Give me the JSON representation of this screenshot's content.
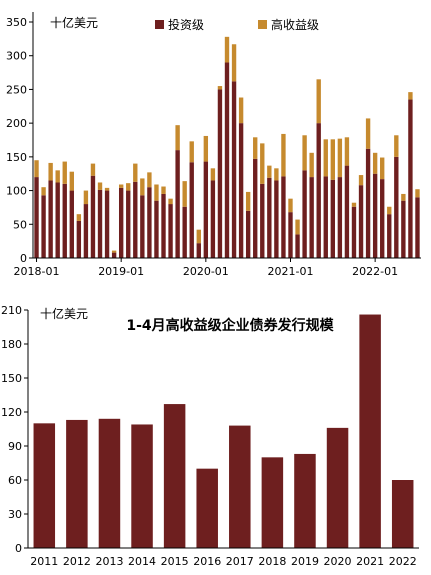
{
  "colors": {
    "ig": "#6e1f1f",
    "hy": "#c68a2e"
  },
  "chart_data": [
    {
      "type": "bar",
      "stacked": true,
      "unit": "十亿美元",
      "ylim": [
        0,
        350
      ],
      "yticks": [
        0,
        50,
        100,
        150,
        200,
        250,
        300,
        350
      ],
      "xtick_labels": [
        "2018-01",
        "2019-01",
        "2020-01",
        "2021-01",
        "2022-01"
      ],
      "xtick_indices": [
        0,
        12,
        24,
        36,
        48
      ],
      "legend": {
        "placement": "top-center"
      },
      "series": [
        {
          "name": "投资级",
          "color": "#6e1f1f",
          "values": [
            120,
            93,
            115,
            112,
            110,
            100,
            55,
            80,
            122,
            101,
            100,
            8,
            104,
            100,
            113,
            93,
            105,
            85,
            95,
            80,
            160,
            76,
            142,
            22,
            143,
            115,
            250,
            290,
            262,
            200,
            70,
            147,
            110,
            119,
            115,
            121,
            68,
            35,
            130,
            120,
            200,
            121,
            116,
            120,
            137,
            76,
            108,
            162,
            125,
            117,
            65,
            150,
            85,
            235,
            90
          ]
        },
        {
          "name": "高收益级",
          "color": "#c68a2e",
          "values": [
            25,
            12,
            26,
            18,
            33,
            28,
            10,
            20,
            18,
            11,
            4,
            3,
            5,
            11,
            27,
            25,
            22,
            24,
            11,
            8,
            37,
            38,
            31,
            20,
            38,
            18,
            5,
            38,
            55,
            38,
            28,
            32,
            60,
            18,
            18,
            63,
            20,
            22,
            52,
            36,
            65,
            55,
            60,
            57,
            42,
            6,
            15,
            45,
            31,
            32,
            11,
            32,
            10,
            11,
            12
          ]
        }
      ]
    },
    {
      "type": "bar",
      "title": "1-4月高收益级企业债券发行规模",
      "unit": "十亿美元",
      "ylim": [
        0,
        210
      ],
      "yticks": [
        0,
        30,
        60,
        90,
        120,
        150,
        180,
        210
      ],
      "categories": [
        "2011",
        "2012",
        "2013",
        "2014",
        "2015",
        "2016",
        "2017",
        "2018",
        "2019",
        "2020",
        "2021",
        "2022"
      ],
      "values": [
        110,
        113,
        114,
        109,
        127,
        70,
        108,
        80,
        83,
        106,
        206,
        60
      ],
      "color": "#6e1f1f"
    }
  ]
}
